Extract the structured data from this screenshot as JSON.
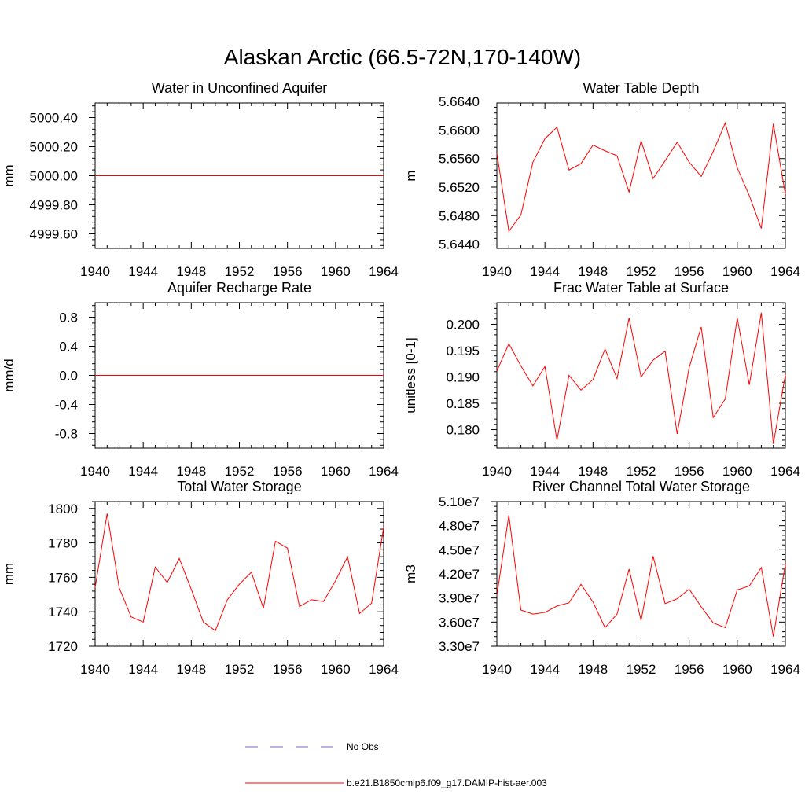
{
  "title": "Alaskan Arctic (66.5-72N,170-140W)",
  "legend": {
    "entries": [
      {
        "label": "No Obs",
        "color": "#6b6bd6",
        "dashed": true
      },
      {
        "label": "b.e21.B1850cmip6.f09_g17.DAMIP-hist-aer.003",
        "color": "#ff0000",
        "dashed": false
      }
    ]
  },
  "chart_data": [
    {
      "type": "line",
      "title": "Water in Unconfined Aquifer",
      "xlabel": "",
      "ylabel": "mm",
      "xlim": [
        1940,
        1964
      ],
      "ylim": [
        4999.5,
        5000.5
      ],
      "xticks": [
        "1940",
        "1944",
        "1948",
        "1952",
        "1956",
        "1960",
        "1964"
      ],
      "yticks": [
        {
          "value": 4999.6,
          "label": "4999.60"
        },
        {
          "value": 4999.8,
          "label": "4999.80"
        },
        {
          "value": 5000.0,
          "label": "5000.00"
        },
        {
          "value": 5000.2,
          "label": "5000.20"
        },
        {
          "value": 5000.4,
          "label": "5000.40"
        }
      ],
      "x": [
        1940,
        1941,
        1942,
        1943,
        1944,
        1945,
        1946,
        1947,
        1948,
        1949,
        1950,
        1951,
        1952,
        1953,
        1954,
        1955,
        1956,
        1957,
        1958,
        1959,
        1960,
        1961,
        1962,
        1963,
        1964
      ],
      "series": [
        {
          "color": "#ff0000",
          "values": [
            5000,
            5000,
            5000,
            5000,
            5000,
            5000,
            5000,
            5000,
            5000,
            5000,
            5000,
            5000,
            5000,
            5000,
            5000,
            5000,
            5000,
            5000,
            5000,
            5000,
            5000,
            5000,
            5000,
            5000,
            5000
          ]
        }
      ]
    },
    {
      "type": "line",
      "title": "Water Table Depth",
      "xlabel": "",
      "ylabel": "m",
      "xlim": [
        1940,
        1964
      ],
      "ylim": [
        5.6434,
        5.6638
      ],
      "xticks": [
        "1940",
        "1944",
        "1948",
        "1952",
        "1956",
        "1960",
        "1964"
      ],
      "yticks": [
        {
          "value": 5.644,
          "label": "5.6440"
        },
        {
          "value": 5.648,
          "label": "5.6480"
        },
        {
          "value": 5.652,
          "label": "5.6520"
        },
        {
          "value": 5.656,
          "label": "5.6560"
        },
        {
          "value": 5.66,
          "label": "5.6600"
        },
        {
          "value": 5.664,
          "label": "5.6640"
        }
      ],
      "x": [
        1940,
        1941,
        1942,
        1943,
        1944,
        1945,
        1946,
        1947,
        1948,
        1949,
        1950,
        1951,
        1952,
        1953,
        1954,
        1955,
        1956,
        1957,
        1958,
        1959,
        1960,
        1961,
        1962,
        1963,
        1964
      ],
      "series": [
        {
          "color": "#ff0000",
          "values": [
            5.6568,
            5.6458,
            5.6481,
            5.6555,
            5.6588,
            5.6604,
            5.6544,
            5.6553,
            5.6579,
            5.6571,
            5.6564,
            5.6513,
            5.6585,
            5.6532,
            5.6557,
            5.6583,
            5.6555,
            5.6535,
            5.657,
            5.661,
            5.6547,
            5.6508,
            5.6462,
            5.6609,
            5.651
          ]
        }
      ]
    },
    {
      "type": "line",
      "title": "Aquifer Recharge Rate",
      "xlabel": "",
      "ylabel": "mm/d",
      "xlim": [
        1940,
        1964
      ],
      "ylim": [
        -1.0,
        1.0
      ],
      "xticks": [
        "1940",
        "1944",
        "1948",
        "1952",
        "1956",
        "1960",
        "1964"
      ],
      "yticks": [
        {
          "value": -0.8,
          "label": "-0.8"
        },
        {
          "value": -0.4,
          "label": "-0.4"
        },
        {
          "value": 0.0,
          "label": "0.0"
        },
        {
          "value": 0.4,
          "label": "0.4"
        },
        {
          "value": 0.8,
          "label": "0.8"
        }
      ],
      "x": [
        1940,
        1941,
        1942,
        1943,
        1944,
        1945,
        1946,
        1947,
        1948,
        1949,
        1950,
        1951,
        1952,
        1953,
        1954,
        1955,
        1956,
        1957,
        1958,
        1959,
        1960,
        1961,
        1962,
        1963,
        1964
      ],
      "series": [
        {
          "color": "#ff0000",
          "values": [
            0,
            0,
            0,
            0,
            0,
            0,
            0,
            0,
            0,
            0,
            0,
            0,
            0,
            0,
            0,
            0,
            0,
            0,
            0,
            0,
            0,
            0,
            0,
            0,
            0
          ]
        }
      ]
    },
    {
      "type": "line",
      "title": "Frac Water Table at Surface",
      "xlabel": "",
      "ylabel": "unitless [0-1]",
      "xlim": [
        1940,
        1964
      ],
      "ylim": [
        0.1765,
        0.2041
      ],
      "xticks": [
        "1940",
        "1944",
        "1948",
        "1952",
        "1956",
        "1960",
        "1964"
      ],
      "yticks": [
        {
          "value": 0.18,
          "label": "0.180"
        },
        {
          "value": 0.185,
          "label": "0.185"
        },
        {
          "value": 0.19,
          "label": "0.190"
        },
        {
          "value": 0.195,
          "label": "0.195"
        },
        {
          "value": 0.2,
          "label": "0.200"
        }
      ],
      "x": [
        1940,
        1941,
        1942,
        1943,
        1944,
        1945,
        1946,
        1947,
        1948,
        1949,
        1950,
        1951,
        1952,
        1953,
        1954,
        1955,
        1956,
        1957,
        1958,
        1959,
        1960,
        1961,
        1962,
        1963,
        1964
      ],
      "series": [
        {
          "color": "#ff0000",
          "values": [
            0.1911,
            0.1963,
            0.1921,
            0.1883,
            0.192,
            0.178,
            0.1903,
            0.1875,
            0.1895,
            0.1953,
            0.1897,
            0.2012,
            0.19,
            0.1932,
            0.1949,
            0.1792,
            0.1918,
            0.1995,
            0.1823,
            0.1858,
            0.2012,
            0.1885,
            0.2022,
            0.1773,
            0.1904
          ]
        }
      ]
    },
    {
      "type": "line",
      "title": "Total Water Storage",
      "xlabel": "",
      "ylabel": "mm",
      "xlim": [
        1940,
        1964
      ],
      "ylim": [
        1720,
        1804
      ],
      "xticks": [
        "1940",
        "1944",
        "1948",
        "1952",
        "1956",
        "1960",
        "1964"
      ],
      "yticks": [
        {
          "value": 1720,
          "label": "1720"
        },
        {
          "value": 1740,
          "label": "1740"
        },
        {
          "value": 1760,
          "label": "1760"
        },
        {
          "value": 1780,
          "label": "1780"
        },
        {
          "value": 1800,
          "label": "1800"
        }
      ],
      "x": [
        1940,
        1941,
        1942,
        1943,
        1944,
        1945,
        1946,
        1947,
        1948,
        1949,
        1950,
        1951,
        1952,
        1953,
        1954,
        1955,
        1956,
        1957,
        1958,
        1959,
        1960,
        1961,
        1962,
        1963,
        1964
      ],
      "series": [
        {
          "color": "#ff0000",
          "values": [
            1754,
            1797,
            1754,
            1737,
            1734,
            1766,
            1757,
            1771,
            1753,
            1734,
            1729,
            1747,
            1756,
            1763,
            1742,
            1781,
            1777,
            1743,
            1747,
            1746,
            1758,
            1772,
            1739,
            1745,
            1789
          ]
        }
      ]
    },
    {
      "type": "line",
      "title": "River Channel Total Water Storage",
      "xlabel": "",
      "ylabel": "m3",
      "xlim": [
        1940,
        1964
      ],
      "ylim": [
        33000000,
        51000000
      ],
      "xticks": [
        "1940",
        "1944",
        "1948",
        "1952",
        "1956",
        "1960",
        "1964"
      ],
      "yticks": [
        {
          "value": 33000000,
          "label": "3.30e7"
        },
        {
          "value": 36000000,
          "label": "3.60e7"
        },
        {
          "value": 39000000,
          "label": "3.90e7"
        },
        {
          "value": 42000000,
          "label": "4.20e7"
        },
        {
          "value": 45000000,
          "label": "4.50e7"
        },
        {
          "value": 48000000,
          "label": "4.80e7"
        },
        {
          "value": 51000000,
          "label": "5.10e7"
        }
      ],
      "x": [
        1940,
        1941,
        1942,
        1943,
        1944,
        1945,
        1946,
        1947,
        1948,
        1949,
        1950,
        1951,
        1952,
        1953,
        1954,
        1955,
        1956,
        1957,
        1958,
        1959,
        1960,
        1961,
        1962,
        1963,
        1964
      ],
      "series": [
        {
          "color": "#ff0000",
          "values": [
            39300000,
            49300000,
            37500000,
            37000000,
            37200000,
            38000000,
            38400000,
            40700000,
            38500000,
            35300000,
            37000000,
            42600000,
            36200000,
            44200000,
            38300000,
            38900000,
            40100000,
            37900000,
            35900000,
            35300000,
            40000000,
            40500000,
            42800000,
            34200000,
            43200000
          ]
        }
      ]
    }
  ]
}
